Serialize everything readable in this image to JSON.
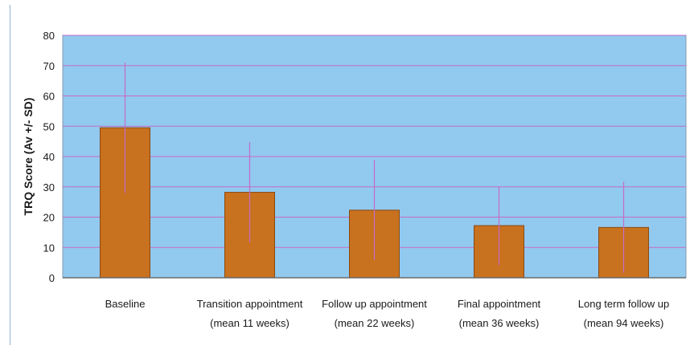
{
  "chart_data": {
    "type": "bar",
    "title": "",
    "xlabel": "",
    "ylabel": "TRQ Score (Av +/- SD)",
    "ylim": [
      0,
      80
    ],
    "yticks": [
      0,
      10,
      20,
      30,
      40,
      50,
      60,
      70,
      80
    ],
    "grid": true,
    "categories": [
      [
        "Baseline"
      ],
      [
        "Transition appointment",
        "(mean 11 weeks)"
      ],
      [
        "Follow up appointment",
        "(mean 22 weeks)"
      ],
      [
        "Final appointment",
        "(mean 36 weeks)"
      ],
      [
        "Long term follow up",
        "(mean 94 weeks)"
      ]
    ],
    "values": [
      49.5,
      28.2,
      22.3,
      17.2,
      16.6
    ],
    "errors": [
      21.5,
      16.5,
      16.5,
      13.0,
      15.0
    ]
  },
  "colors": {
    "plot_background": "#92c9ef",
    "gridline": "#c46cc8",
    "bar_fill": "#c8711f",
    "bar_edge": "#8a4a10",
    "error_bar": "#c46cc8"
  }
}
